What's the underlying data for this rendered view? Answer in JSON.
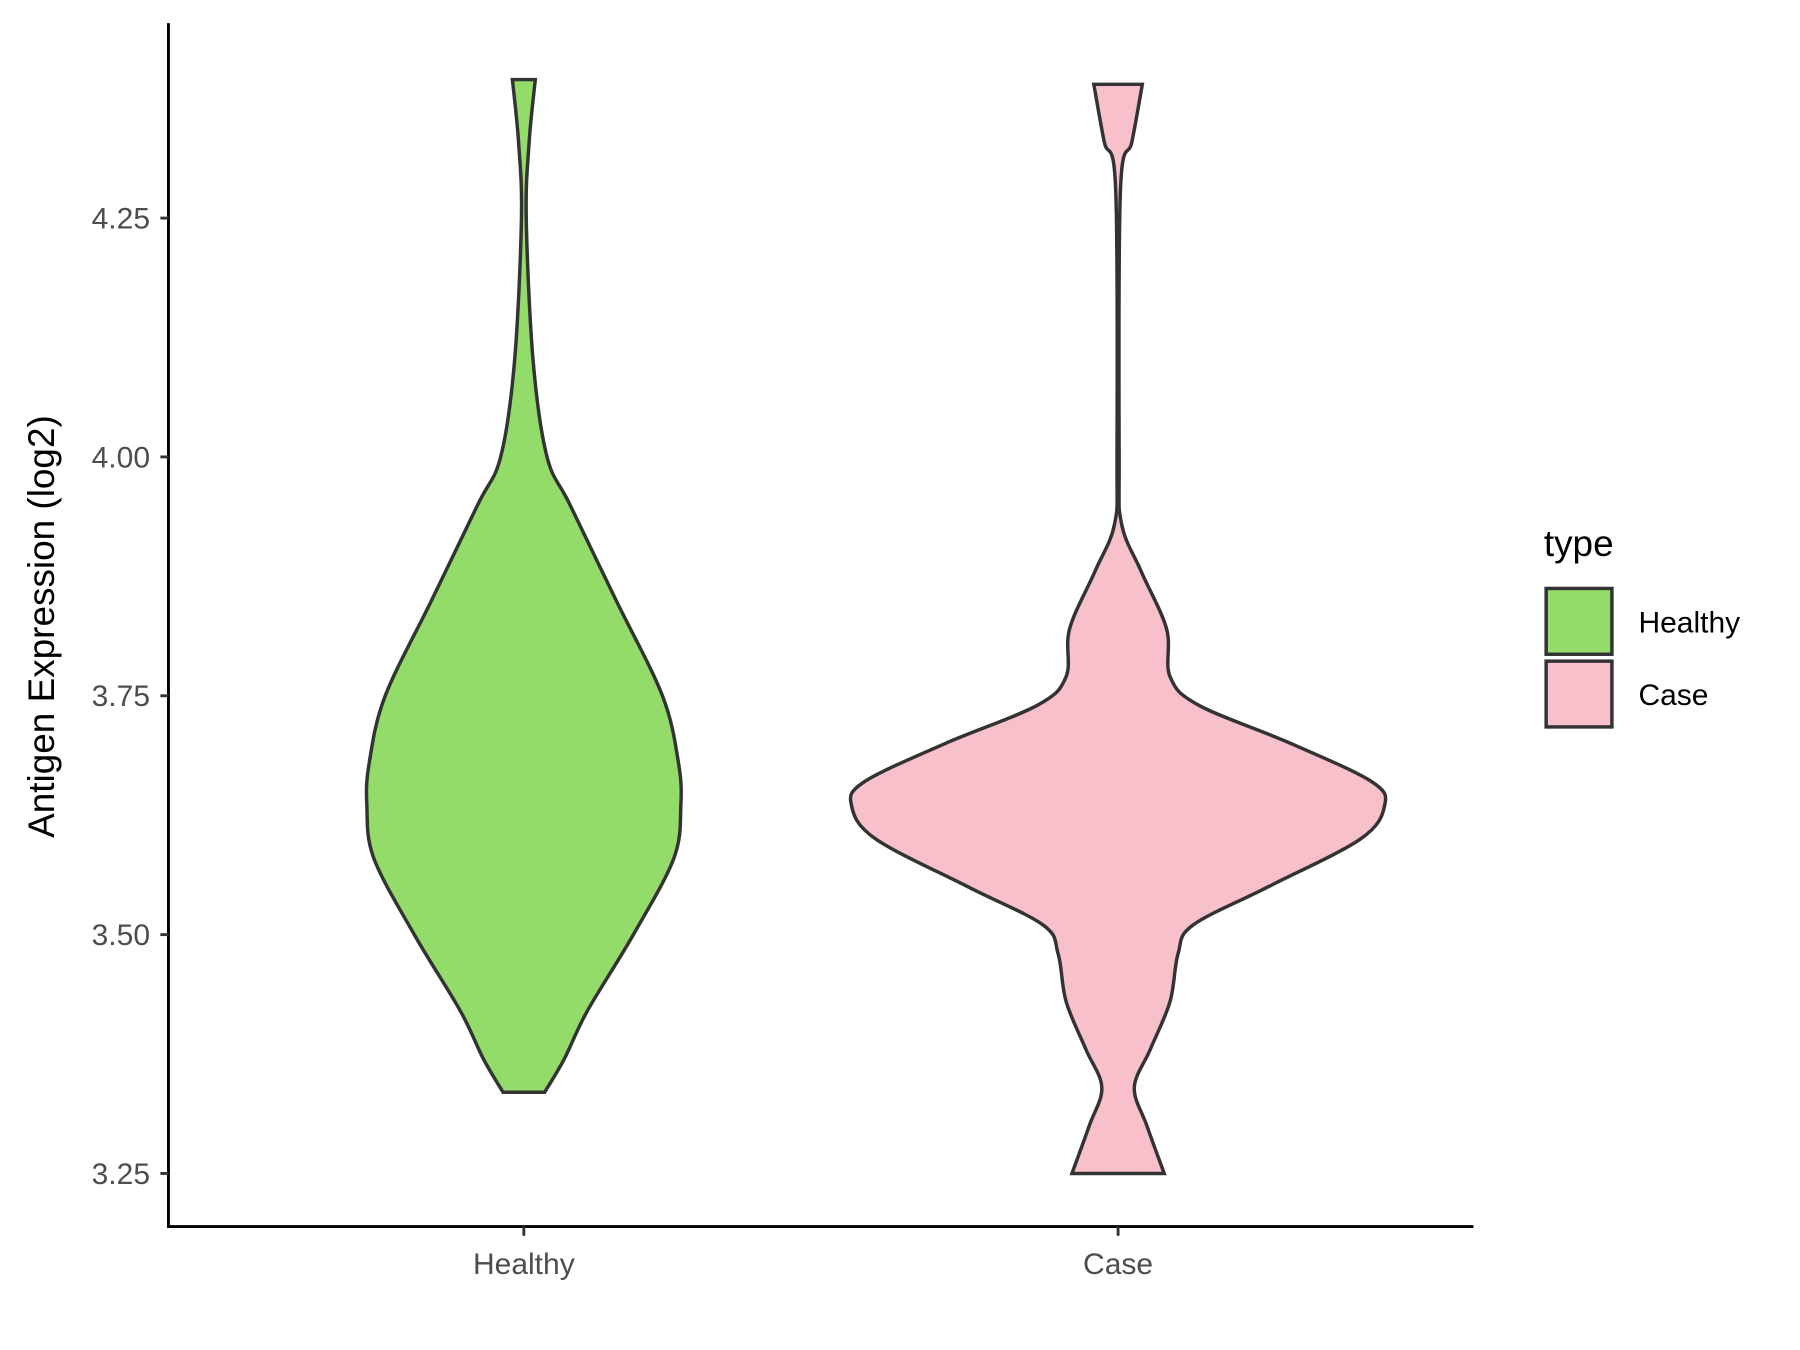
{
  "chart_data": {
    "type": "violin",
    "title": "",
    "xlabel": "",
    "ylabel": "Antigen Expression (log2)",
    "ylim": [
      3.2,
      4.46
    ],
    "yticks": [
      3.25,
      3.5,
      3.75,
      4.0,
      4.25
    ],
    "ytick_labels": [
      "3.25",
      "3.50",
      "3.75",
      "4.00",
      "4.25"
    ],
    "categories": [
      "Healthy",
      "Case"
    ],
    "legend": {
      "title": "type",
      "position": "right",
      "entries": [
        "Healthy",
        "Case"
      ]
    },
    "series": [
      {
        "name": "Healthy",
        "color": "#93DC6A",
        "density_profile": [
          [
            4.395,
            0.043
          ],
          [
            4.33,
            0.02
          ],
          [
            4.25,
            0.009
          ],
          [
            4.1,
            0.035
          ],
          [
            4.0,
            0.087
          ],
          [
            3.95,
            0.173
          ],
          [
            3.85,
            0.346
          ],
          [
            3.75,
            0.52
          ],
          [
            3.68,
            0.58
          ],
          [
            3.635,
            0.589
          ],
          [
            3.58,
            0.563
          ],
          [
            3.5,
            0.411
          ],
          [
            3.42,
            0.238
          ],
          [
            3.37,
            0.152
          ],
          [
            3.335,
            0.078
          ]
        ]
      },
      {
        "name": "Case",
        "color": "#F7C0CB",
        "density_profile": [
          [
            4.39,
            0.091
          ],
          [
            4.33,
            0.052
          ],
          [
            4.28,
            0.009
          ],
          [
            4.0,
            0.004
          ],
          [
            3.93,
            0.013
          ],
          [
            3.88,
            0.087
          ],
          [
            3.82,
            0.182
          ],
          [
            3.77,
            0.195
          ],
          [
            3.74,
            0.303
          ],
          [
            3.7,
            0.649
          ],
          [
            3.66,
            0.952
          ],
          [
            3.635,
            1.0
          ],
          [
            3.6,
            0.909
          ],
          [
            3.55,
            0.563
          ],
          [
            3.51,
            0.281
          ],
          [
            3.48,
            0.225
          ],
          [
            3.43,
            0.195
          ],
          [
            3.38,
            0.121
          ],
          [
            3.34,
            0.061
          ],
          [
            3.3,
            0.108
          ],
          [
            3.25,
            0.173
          ]
        ]
      }
    ]
  }
}
